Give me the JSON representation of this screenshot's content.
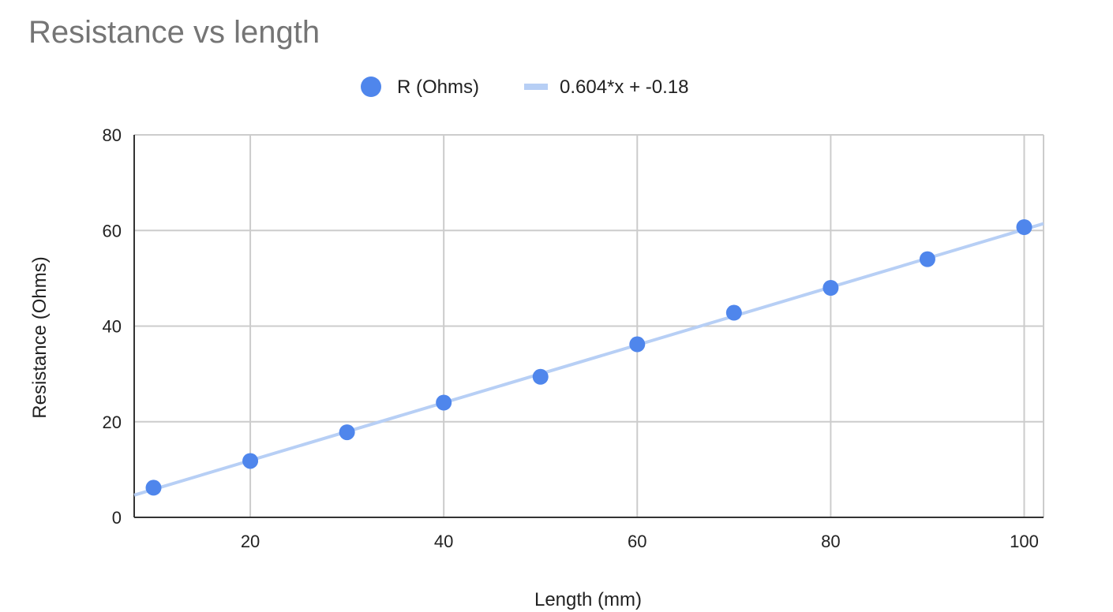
{
  "chart_data": {
    "type": "scatter",
    "title": "Resistance vs length",
    "xlabel": "Length (mm)",
    "ylabel": "Resistance (Ohms)",
    "xlim": [
      8,
      102
    ],
    "ylim": [
      0,
      80
    ],
    "xticks": [
      20,
      40,
      60,
      80,
      100
    ],
    "yticks": [
      0,
      20,
      40,
      60,
      80
    ],
    "grid": true,
    "legend_position": "top",
    "series": [
      {
        "name": "R (Ohms)",
        "color": "#4f86ec",
        "x": [
          10,
          20,
          30,
          40,
          50,
          60,
          70,
          80,
          90,
          100
        ],
        "y": [
          6.2,
          11.8,
          17.8,
          24.0,
          29.4,
          36.2,
          42.8,
          48.0,
          54.0,
          60.7
        ]
      }
    ],
    "trendline": {
      "name": "0.604*x + -0.18",
      "color": "#b7cff5",
      "slope": 0.604,
      "intercept": -0.18,
      "x_range": [
        8,
        102
      ]
    }
  }
}
